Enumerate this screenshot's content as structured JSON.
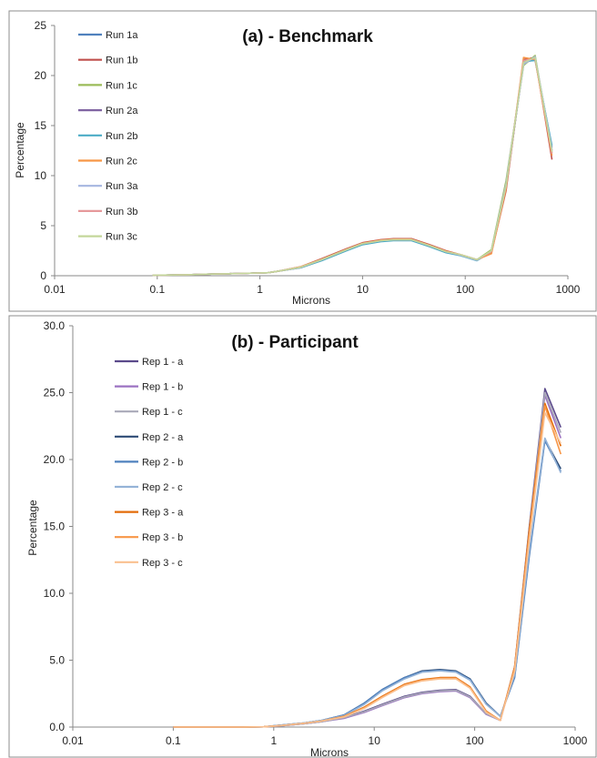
{
  "chart_data": [
    {
      "type": "line",
      "title": "(a) - Benchmark",
      "xlabel": "Microns",
      "ylabel": "Percentage",
      "xscale": "log",
      "xlim": [
        0.01,
        1000
      ],
      "ylim": [
        0,
        25
      ],
      "x_ticks": [
        "0.01",
        "0.1",
        "1",
        "10",
        "100",
        "1000"
      ],
      "y_ticks": [
        "0",
        "5",
        "10",
        "15",
        "20",
        "25"
      ],
      "grid": false,
      "legend_position": "top-left",
      "x": [
        0.09,
        0.12,
        0.2,
        0.3,
        0.5,
        0.8,
        1.2,
        1.5,
        2.5,
        4,
        7,
        10,
        15,
        20,
        30,
        45,
        65,
        90,
        130,
        180,
        250,
        370,
        480,
        700
      ],
      "series": [
        {
          "name": "Run 1a",
          "color": "#4f81bd",
          "values": [
            0.05,
            0.06,
            0.1,
            0.15,
            0.2,
            0.25,
            0.3,
            0.45,
            0.85,
            1.6,
            2.6,
            3.2,
            3.5,
            3.6,
            3.6,
            3.0,
            2.4,
            2.1,
            1.6,
            2.5,
            9.0,
            21.2,
            21.7,
            12.8
          ]
        },
        {
          "name": "Run 1b",
          "color": "#c0504d",
          "values": [
            0.05,
            0.06,
            0.1,
            0.15,
            0.2,
            0.25,
            0.3,
            0.45,
            0.9,
            1.7,
            2.7,
            3.3,
            3.6,
            3.7,
            3.7,
            3.1,
            2.5,
            2.1,
            1.6,
            2.3,
            8.5,
            21.6,
            21.8,
            11.6
          ]
        },
        {
          "name": "Run 1c",
          "color": "#9bbb59",
          "values": [
            0.05,
            0.06,
            0.1,
            0.15,
            0.2,
            0.25,
            0.3,
            0.45,
            0.85,
            1.6,
            2.6,
            3.2,
            3.5,
            3.6,
            3.6,
            3.0,
            2.4,
            2.1,
            1.6,
            2.6,
            9.5,
            21.0,
            22.0,
            12.3
          ]
        },
        {
          "name": "Run 2a",
          "color": "#8064a2",
          "values": [
            0.05,
            0.06,
            0.1,
            0.15,
            0.2,
            0.25,
            0.3,
            0.45,
            0.8,
            1.55,
            2.55,
            3.15,
            3.45,
            3.55,
            3.55,
            2.95,
            2.35,
            2.05,
            1.55,
            2.4,
            8.8,
            21.3,
            21.6,
            12.5
          ]
        },
        {
          "name": "Run 2b",
          "color": "#4bacc6",
          "values": [
            0.05,
            0.06,
            0.1,
            0.15,
            0.2,
            0.25,
            0.3,
            0.45,
            0.8,
            1.5,
            2.5,
            3.1,
            3.4,
            3.5,
            3.5,
            2.9,
            2.3,
            2.0,
            1.5,
            2.4,
            9.1,
            21.4,
            21.5,
            13.0
          ]
        },
        {
          "name": "Run 2c",
          "color": "#f79646",
          "values": [
            0.05,
            0.06,
            0.1,
            0.15,
            0.2,
            0.25,
            0.3,
            0.45,
            0.9,
            1.65,
            2.65,
            3.25,
            3.55,
            3.65,
            3.65,
            3.05,
            2.45,
            2.1,
            1.6,
            2.2,
            8.7,
            21.8,
            21.6,
            12.0
          ]
        },
        {
          "name": "Run 3a",
          "color": "#a5b6e0",
          "values": [
            0.05,
            0.06,
            0.1,
            0.15,
            0.2,
            0.25,
            0.3,
            0.45,
            0.85,
            1.6,
            2.6,
            3.2,
            3.5,
            3.6,
            3.6,
            3.0,
            2.4,
            2.05,
            1.55,
            2.5,
            9.2,
            21.1,
            21.9,
            12.6
          ]
        },
        {
          "name": "Run 3b",
          "color": "#e6999b",
          "values": [
            0.05,
            0.06,
            0.1,
            0.15,
            0.2,
            0.25,
            0.3,
            0.45,
            0.85,
            1.6,
            2.6,
            3.2,
            3.5,
            3.6,
            3.6,
            3.0,
            2.4,
            2.1,
            1.6,
            2.4,
            8.9,
            21.5,
            21.7,
            12.2
          ]
        },
        {
          "name": "Run 3c",
          "color": "#c4d79b",
          "values": [
            0.05,
            0.06,
            0.1,
            0.15,
            0.2,
            0.25,
            0.3,
            0.45,
            0.85,
            1.6,
            2.6,
            3.2,
            3.5,
            3.6,
            3.6,
            3.0,
            2.4,
            2.1,
            1.6,
            2.5,
            9.0,
            21.3,
            21.8,
            12.4
          ]
        }
      ]
    },
    {
      "type": "line",
      "title": "(b) - Participant",
      "xlabel": "Microns",
      "ylabel": "Percentage",
      "xscale": "log",
      "xlim": [
        0.01,
        1000
      ],
      "ylim": [
        0,
        30
      ],
      "x_ticks": [
        "0.01",
        "0.1",
        "1",
        "10",
        "100",
        "1000"
      ],
      "y_ticks": [
        "0.0",
        "5.0",
        "10.0",
        "15.0",
        "20.0",
        "25.0",
        "30.0"
      ],
      "grid": false,
      "legend_position": "top-left",
      "x": [
        0.1,
        0.2,
        0.5,
        0.8,
        1.2,
        2,
        3,
        5,
        8,
        12,
        20,
        30,
        45,
        65,
        90,
        130,
        180,
        250,
        350,
        500,
        720
      ],
      "series": [
        {
          "name": "Rep 1 - a",
          "color": "#5b4a8b",
          "values": [
            0,
            0,
            0,
            0.02,
            0.1,
            0.25,
            0.4,
            0.7,
            1.2,
            1.7,
            2.3,
            2.6,
            2.75,
            2.8,
            2.3,
            1.0,
            0.5,
            4.5,
            15.0,
            25.3,
            22.4
          ]
        },
        {
          "name": "Rep 1 - b",
          "color": "#9b72c2",
          "values": [
            0,
            0,
            0,
            0.02,
            0.1,
            0.25,
            0.4,
            0.65,
            1.1,
            1.6,
            2.2,
            2.5,
            2.65,
            2.7,
            2.2,
            0.95,
            0.5,
            4.3,
            14.5,
            24.8,
            21.6
          ]
        },
        {
          "name": "Rep 1 - c",
          "color": "#a9a9b8",
          "values": [
            0,
            0,
            0,
            0.02,
            0.1,
            0.25,
            0.4,
            0.7,
            1.15,
            1.65,
            2.25,
            2.55,
            2.7,
            2.75,
            2.25,
            1.0,
            0.5,
            4.4,
            14.8,
            25.0,
            22.0
          ]
        },
        {
          "name": "Rep 2 - a",
          "color": "#2c4a74",
          "values": [
            0,
            0,
            0,
            0.02,
            0.15,
            0.3,
            0.5,
            0.9,
            1.8,
            2.8,
            3.7,
            4.2,
            4.3,
            4.2,
            3.6,
            1.8,
            0.8,
            3.8,
            13.0,
            21.5,
            19.3
          ]
        },
        {
          "name": "Rep 2 - b",
          "color": "#4f81bd",
          "values": [
            0,
            0,
            0,
            0.02,
            0.15,
            0.3,
            0.5,
            0.9,
            1.8,
            2.8,
            3.7,
            4.15,
            4.25,
            4.15,
            3.55,
            1.75,
            0.8,
            3.7,
            12.8,
            21.4,
            19.1
          ]
        },
        {
          "name": "Rep 2 - c",
          "color": "#95b3d7",
          "values": [
            0,
            0,
            0,
            0.02,
            0.15,
            0.3,
            0.5,
            0.85,
            1.7,
            2.7,
            3.6,
            4.1,
            4.2,
            4.1,
            3.5,
            1.7,
            0.8,
            3.9,
            13.2,
            21.6,
            19.0
          ]
        },
        {
          "name": "Rep 3 - a",
          "color": "#e36c09",
          "values": [
            0,
            0,
            0,
            0.02,
            0.12,
            0.28,
            0.45,
            0.8,
            1.5,
            2.3,
            3.2,
            3.55,
            3.7,
            3.7,
            3.0,
            1.2,
            0.5,
            4.5,
            14.8,
            24.2,
            21.0
          ]
        },
        {
          "name": "Rep 3 - b",
          "color": "#f79646",
          "values": [
            0,
            0,
            0,
            0.02,
            0.12,
            0.28,
            0.45,
            0.8,
            1.45,
            2.25,
            3.15,
            3.5,
            3.65,
            3.65,
            2.95,
            1.15,
            0.5,
            4.4,
            14.5,
            24.0,
            20.4
          ]
        },
        {
          "name": "Rep 3 - c",
          "color": "#fac08f",
          "values": [
            0,
            0,
            0,
            0.02,
            0.12,
            0.28,
            0.45,
            0.75,
            1.4,
            2.2,
            3.1,
            3.45,
            3.6,
            3.6,
            2.9,
            1.1,
            0.5,
            4.2,
            14.0,
            23.5,
            21.2
          ]
        }
      ]
    }
  ]
}
